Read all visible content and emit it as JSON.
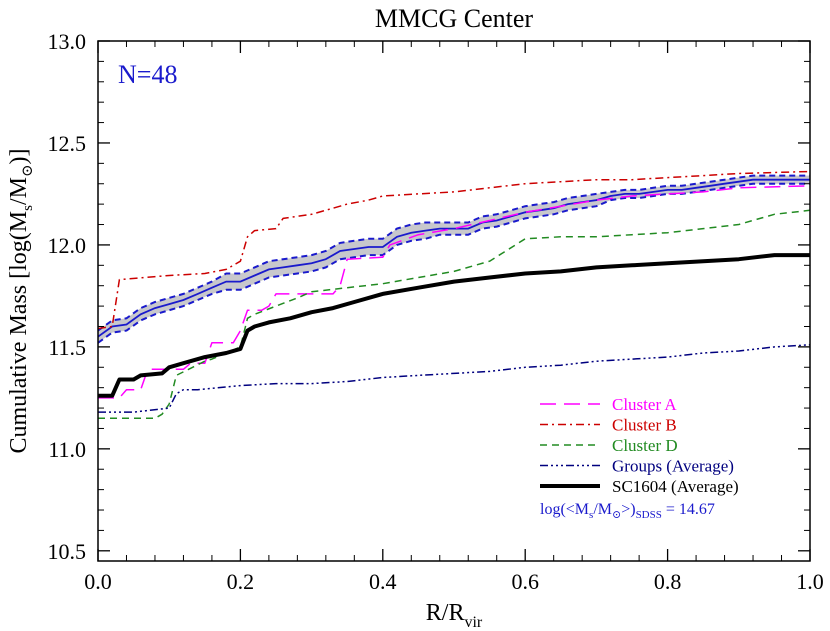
{
  "chart_data": {
    "type": "line",
    "title": "MMCG Center",
    "xlabel_main": "R/R",
    "xlabel_sub": "vir",
    "ylabel_parts": [
      "Cumulative Mass [log(M",
      "s",
      "/M",
      "⊙",
      ")]"
    ],
    "xlim": [
      0.0,
      1.0
    ],
    "ylim": [
      10.45,
      13.0
    ],
    "xticks": [
      0.0,
      0.2,
      0.4,
      0.6,
      0.8,
      1.0
    ],
    "xtick_labels": [
      "0.0",
      "0.2",
      "0.4",
      "0.6",
      "0.8",
      "1.0"
    ],
    "yticks": [
      10.5,
      11.0,
      11.5,
      12.0,
      12.5,
      13.0
    ],
    "ytick_labels": [
      "10.5",
      "11.0",
      "11.5",
      "12.0",
      "12.5",
      "13.0"
    ],
    "annotation_n": "N=48",
    "annotation_sdss": {
      "prefix": "log(<M",
      "s_sub": "s",
      "mid": "/M",
      "sun_sub": "⊙",
      "close": ">)",
      "sub": "SDSS",
      "value": " = 14.67"
    },
    "band": {
      "x": [
        0.0,
        0.02,
        0.04,
        0.06,
        0.08,
        0.1,
        0.12,
        0.14,
        0.16,
        0.18,
        0.2,
        0.22,
        0.24,
        0.26,
        0.28,
        0.3,
        0.32,
        0.34,
        0.36,
        0.38,
        0.4,
        0.42,
        0.44,
        0.46,
        0.48,
        0.5,
        0.52,
        0.54,
        0.56,
        0.58,
        0.6,
        0.62,
        0.64,
        0.66,
        0.68,
        0.7,
        0.72,
        0.74,
        0.76,
        0.78,
        0.8,
        0.82,
        0.84,
        0.86,
        0.88,
        0.9,
        0.92,
        0.94,
        0.96,
        0.98,
        1.0
      ],
      "mid": [
        11.55,
        11.6,
        11.61,
        11.66,
        11.69,
        11.71,
        11.73,
        11.76,
        11.79,
        11.82,
        11.82,
        11.85,
        11.88,
        11.89,
        11.9,
        11.91,
        11.93,
        11.97,
        11.98,
        11.99,
        11.99,
        12.04,
        12.06,
        12.07,
        12.08,
        12.08,
        12.08,
        12.11,
        12.12,
        12.14,
        12.16,
        12.17,
        12.18,
        12.2,
        12.21,
        12.22,
        12.24,
        12.25,
        12.25,
        12.26,
        12.27,
        12.27,
        12.28,
        12.29,
        12.3,
        12.31,
        12.32,
        12.32,
        12.32,
        12.32,
        12.32
      ],
      "upper": [
        11.58,
        11.63,
        11.64,
        11.69,
        11.72,
        11.74,
        11.76,
        11.79,
        11.82,
        11.86,
        11.86,
        11.89,
        11.92,
        11.93,
        11.94,
        11.95,
        11.97,
        12.01,
        12.02,
        12.03,
        12.03,
        12.08,
        12.1,
        12.11,
        12.11,
        12.11,
        12.11,
        12.14,
        12.15,
        12.17,
        12.19,
        12.2,
        12.21,
        12.23,
        12.24,
        12.25,
        12.26,
        12.27,
        12.27,
        12.28,
        12.29,
        12.29,
        12.3,
        12.31,
        12.32,
        12.33,
        12.34,
        12.34,
        12.34,
        12.34,
        12.34
      ],
      "lower": [
        11.52,
        11.57,
        11.58,
        11.63,
        11.66,
        11.68,
        11.7,
        11.73,
        11.76,
        11.78,
        11.78,
        11.81,
        11.84,
        11.85,
        11.86,
        11.87,
        11.89,
        11.93,
        11.94,
        11.95,
        11.95,
        12.0,
        12.02,
        12.03,
        12.05,
        12.05,
        12.05,
        12.08,
        12.09,
        12.11,
        12.13,
        12.14,
        12.15,
        12.17,
        12.18,
        12.19,
        12.22,
        12.23,
        12.23,
        12.24,
        12.25,
        12.25,
        12.26,
        12.27,
        12.28,
        12.29,
        12.3,
        12.3,
        12.3,
        12.3,
        12.3
      ],
      "fill_color": "#c8c8cc",
      "line_color": "#1a1acc"
    },
    "series": [
      {
        "name": "Cluster A",
        "color": "#ff00ff",
        "style": "dashed",
        "x": [
          0.0,
          0.03,
          0.04,
          0.06,
          0.07,
          0.12,
          0.13,
          0.15,
          0.16,
          0.19,
          0.2,
          0.21,
          0.23,
          0.24,
          0.25,
          0.33,
          0.34,
          0.35,
          0.4,
          0.41,
          0.45,
          0.5,
          0.55,
          0.6,
          0.65,
          0.7,
          0.75,
          0.8,
          0.85,
          0.9,
          1.0
        ],
        "y": [
          11.25,
          11.25,
          11.29,
          11.29,
          11.39,
          11.39,
          11.42,
          11.42,
          11.52,
          11.52,
          11.58,
          11.68,
          11.68,
          11.7,
          11.76,
          11.76,
          11.8,
          11.93,
          11.94,
          12.0,
          12.05,
          12.08,
          12.12,
          12.16,
          12.19,
          12.22,
          12.24,
          12.25,
          12.26,
          12.28,
          12.29
        ]
      },
      {
        "name": "Cluster B",
        "color": "#cc0000",
        "style": "dashdot",
        "x": [
          0.0,
          0.02,
          0.03,
          0.1,
          0.15,
          0.18,
          0.2,
          0.21,
          0.22,
          0.25,
          0.26,
          0.3,
          0.33,
          0.35,
          0.38,
          0.4,
          0.45,
          0.5,
          0.55,
          0.6,
          0.65,
          0.7,
          0.75,
          0.8,
          0.85,
          0.9,
          1.0
        ],
        "y": [
          11.59,
          11.6,
          11.83,
          11.85,
          11.86,
          11.88,
          11.92,
          12.04,
          12.07,
          12.08,
          12.13,
          12.15,
          12.18,
          12.2,
          12.22,
          12.24,
          12.25,
          12.26,
          12.28,
          12.3,
          12.31,
          12.32,
          12.32,
          12.33,
          12.34,
          12.35,
          12.36
        ]
      },
      {
        "name": "Cluster D",
        "color": "#228b22",
        "style": "shortdash",
        "x": [
          0.0,
          0.08,
          0.09,
          0.1,
          0.11,
          0.15,
          0.16,
          0.2,
          0.21,
          0.22,
          0.25,
          0.28,
          0.3,
          0.35,
          0.4,
          0.45,
          0.5,
          0.55,
          0.6,
          0.65,
          0.7,
          0.75,
          0.8,
          0.85,
          0.9,
          0.95,
          1.0
        ],
        "y": [
          11.15,
          11.15,
          11.17,
          11.22,
          11.36,
          11.43,
          11.44,
          11.5,
          11.64,
          11.66,
          11.7,
          11.74,
          11.77,
          11.79,
          11.81,
          11.84,
          11.87,
          11.92,
          12.03,
          12.04,
          12.04,
          12.05,
          12.06,
          12.08,
          12.1,
          12.15,
          12.17
        ]
      },
      {
        "name": "Groups (Average)",
        "color": "#00007f",
        "style": "dashdotdotdot",
        "x": [
          0.0,
          0.05,
          0.1,
          0.11,
          0.12,
          0.14,
          0.2,
          0.25,
          0.3,
          0.35,
          0.4,
          0.45,
          0.5,
          0.55,
          0.6,
          0.65,
          0.7,
          0.75,
          0.8,
          0.85,
          0.9,
          0.95,
          1.0
        ],
        "y": [
          11.18,
          11.18,
          11.2,
          11.27,
          11.29,
          11.29,
          11.31,
          11.32,
          11.32,
          11.33,
          11.35,
          11.36,
          11.37,
          11.38,
          11.4,
          11.41,
          11.43,
          11.44,
          11.45,
          11.47,
          11.48,
          11.5,
          11.51
        ]
      },
      {
        "name": "SC1604 (Average)",
        "color": "#000000",
        "style": "solid-thick",
        "x": [
          0.0,
          0.02,
          0.03,
          0.05,
          0.06,
          0.09,
          0.1,
          0.12,
          0.15,
          0.18,
          0.2,
          0.21,
          0.22,
          0.24,
          0.27,
          0.3,
          0.33,
          0.36,
          0.4,
          0.45,
          0.5,
          0.55,
          0.6,
          0.65,
          0.7,
          0.75,
          0.8,
          0.85,
          0.9,
          0.95,
          1.0
        ],
        "y": [
          11.26,
          11.26,
          11.34,
          11.34,
          11.36,
          11.37,
          11.4,
          11.42,
          11.45,
          11.47,
          11.49,
          11.58,
          11.6,
          11.62,
          11.64,
          11.67,
          11.69,
          11.72,
          11.76,
          11.79,
          11.82,
          11.84,
          11.86,
          11.87,
          11.89,
          11.9,
          11.91,
          11.92,
          11.93,
          11.95,
          11.95
        ]
      }
    ]
  }
}
